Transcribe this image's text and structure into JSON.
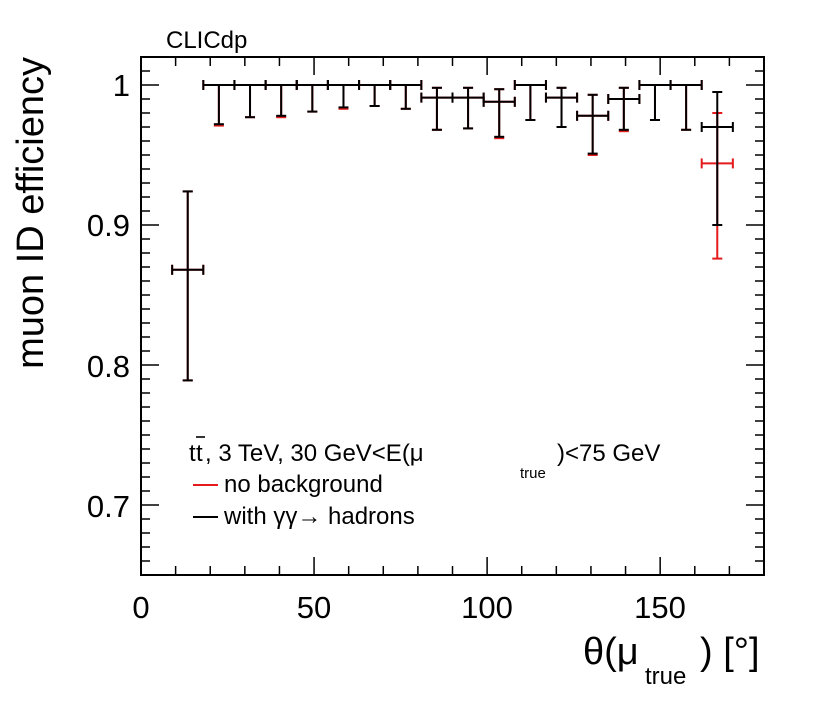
{
  "chart_data": {
    "type": "scatter",
    "label": "CLICdp",
    "xlabel": "θ(μ",
    "xlabel_sub": "true",
    "xlabel_end": ") [°]",
    "ylabel": "muon ID efficiency",
    "xlim": [
      0,
      180
    ],
    "ylim": [
      0.65,
      1.02
    ],
    "xticks": [
      0,
      50,
      100,
      150
    ],
    "xtick_labels": [
      "0",
      "50",
      "100",
      "150"
    ],
    "yticks": [
      0.7,
      0.8,
      0.9,
      1.0
    ],
    "ytick_labels": [
      "0.7",
      "0.8",
      "0.9",
      "1"
    ],
    "annotation": {
      "prefix": "t",
      "tbar": "t",
      "mid": ", 3 TeV, 30 GeV<E(μ",
      "sub": "true",
      "suffix": ")<75 GeV"
    },
    "series": [
      {
        "name": "no background",
        "color": "#e41a1c",
        "points": [
          {
            "x": 13.5,
            "xerr": 4.5,
            "y": 0.868,
            "lo": 0.789,
            "hi": 0.924
          },
          {
            "x": 22.5,
            "xerr": 4.5,
            "y": 1.0,
            "lo": 0.971,
            "hi": 1.0
          },
          {
            "x": 31.5,
            "xerr": 4.5,
            "y": 1.0,
            "lo": 0.977,
            "hi": 1.0
          },
          {
            "x": 40.5,
            "xerr": 4.5,
            "y": 1.0,
            "lo": 0.977,
            "hi": 1.0
          },
          {
            "x": 49.5,
            "xerr": 4.5,
            "y": 1.0,
            "lo": 0.981,
            "hi": 1.0
          },
          {
            "x": 58.5,
            "xerr": 4.5,
            "y": 1.0,
            "lo": 0.983,
            "hi": 1.0
          },
          {
            "x": 67.5,
            "xerr": 4.5,
            "y": 1.0,
            "lo": 0.985,
            "hi": 1.0
          },
          {
            "x": 76.5,
            "xerr": 4.5,
            "y": 1.0,
            "lo": 0.983,
            "hi": 1.0
          },
          {
            "x": 85.5,
            "xerr": 4.5,
            "y": 0.991,
            "lo": 0.968,
            "hi": 0.998
          },
          {
            "x": 94.5,
            "xerr": 4.5,
            "y": 0.991,
            "lo": 0.969,
            "hi": 0.998
          },
          {
            "x": 103.5,
            "xerr": 4.5,
            "y": 0.988,
            "lo": 0.962,
            "hi": 0.997
          },
          {
            "x": 112.5,
            "xerr": 4.5,
            "y": 1.0,
            "lo": 0.975,
            "hi": 1.0
          },
          {
            "x": 121.5,
            "xerr": 4.5,
            "y": 0.991,
            "lo": 0.97,
            "hi": 0.998
          },
          {
            "x": 130.5,
            "xerr": 4.5,
            "y": 0.978,
            "lo": 0.95,
            "hi": 0.993
          },
          {
            "x": 139.5,
            "xerr": 4.5,
            "y": 0.99,
            "lo": 0.967,
            "hi": 0.998
          },
          {
            "x": 148.5,
            "xerr": 4.5,
            "y": 1.0,
            "lo": 0.975,
            "hi": 1.0
          },
          {
            "x": 157.5,
            "xerr": 4.5,
            "y": 1.0,
            "lo": 0.968,
            "hi": 1.0
          },
          {
            "x": 166.5,
            "xerr": 4.5,
            "y": 0.944,
            "lo": 0.876,
            "hi": 0.98
          }
        ]
      },
      {
        "name": "with γγ→ hadrons",
        "color": "#000000",
        "points": [
          {
            "x": 13.5,
            "xerr": 4.5,
            "y": 0.868,
            "lo": 0.789,
            "hi": 0.924
          },
          {
            "x": 22.5,
            "xerr": 4.5,
            "y": 1.0,
            "lo": 0.972,
            "hi": 1.0
          },
          {
            "x": 31.5,
            "xerr": 4.5,
            "y": 1.0,
            "lo": 0.977,
            "hi": 1.0
          },
          {
            "x": 40.5,
            "xerr": 4.5,
            "y": 1.0,
            "lo": 0.978,
            "hi": 1.0
          },
          {
            "x": 49.5,
            "xerr": 4.5,
            "y": 1.0,
            "lo": 0.981,
            "hi": 1.0
          },
          {
            "x": 58.5,
            "xerr": 4.5,
            "y": 1.0,
            "lo": 0.984,
            "hi": 1.0
          },
          {
            "x": 67.5,
            "xerr": 4.5,
            "y": 1.0,
            "lo": 0.985,
            "hi": 1.0
          },
          {
            "x": 76.5,
            "xerr": 4.5,
            "y": 1.0,
            "lo": 0.983,
            "hi": 1.0
          },
          {
            "x": 85.5,
            "xerr": 4.5,
            "y": 0.991,
            "lo": 0.968,
            "hi": 0.998
          },
          {
            "x": 94.5,
            "xerr": 4.5,
            "y": 0.991,
            "lo": 0.969,
            "hi": 0.998
          },
          {
            "x": 103.5,
            "xerr": 4.5,
            "y": 0.988,
            "lo": 0.963,
            "hi": 0.997
          },
          {
            "x": 112.5,
            "xerr": 4.5,
            "y": 1.0,
            "lo": 0.975,
            "hi": 1.0
          },
          {
            "x": 121.5,
            "xerr": 4.5,
            "y": 0.991,
            "lo": 0.97,
            "hi": 0.998
          },
          {
            "x": 130.5,
            "xerr": 4.5,
            "y": 0.978,
            "lo": 0.951,
            "hi": 0.993
          },
          {
            "x": 139.5,
            "xerr": 4.5,
            "y": 0.99,
            "lo": 0.968,
            "hi": 0.998
          },
          {
            "x": 148.5,
            "xerr": 4.5,
            "y": 1.0,
            "lo": 0.975,
            "hi": 1.0
          },
          {
            "x": 157.5,
            "xerr": 4.5,
            "y": 1.0,
            "lo": 0.968,
            "hi": 1.0
          },
          {
            "x": 166.5,
            "xerr": 4.5,
            "y": 0.97,
            "lo": 0.9,
            "hi": 0.995
          }
        ]
      }
    ]
  }
}
